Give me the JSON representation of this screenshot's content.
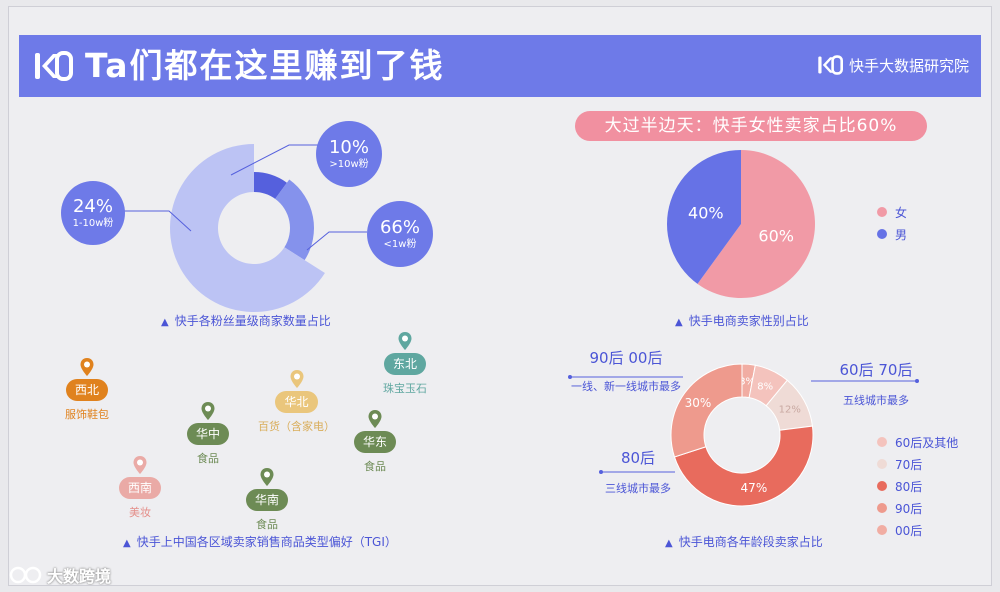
{
  "header": {
    "title": "Ta们都在这里赚到了钱",
    "brand": "快手大数据研究院",
    "color": "#6e7ae8"
  },
  "banner": "大过半边天：快手女性卖家占比60%",
  "chart_data": [
    {
      "type": "pie",
      "title": "快手各粉丝量级商家数量占比",
      "categories": [
        ">10w粉",
        "1-10w粉",
        "<1w粉"
      ],
      "values": [
        10,
        24,
        66
      ],
      "labels": [
        "10%",
        "24%",
        "66%"
      ],
      "colors": [
        "#5560dd",
        "#8592ec",
        "#bcc3f4"
      ]
    },
    {
      "type": "pie",
      "title": "快手电商卖家性别占比",
      "categories": [
        "女",
        "男"
      ],
      "values": [
        60,
        40
      ],
      "labels": [
        "60%",
        "40%"
      ],
      "colors": [
        "#f19aa6",
        "#6672e6"
      ]
    },
    {
      "type": "pie",
      "title": "快手电商各年龄段卖家占比",
      "categories": [
        "60后及其他",
        "70后",
        "80后",
        "90后",
        "00后"
      ],
      "values": [
        8,
        12,
        47,
        30,
        3
      ],
      "labels": [
        "8%",
        "12%",
        "47%",
        "30%",
        "3%"
      ],
      "colors": [
        "#f4c3bd",
        "#efdbd6",
        "#e86b5d",
        "#ee9a8d",
        "#f1ada3"
      ]
    }
  ],
  "fans_chart": {
    "bubbles": [
      {
        "pct": "10%",
        "sub": ">10w粉"
      },
      {
        "pct": "24%",
        "sub": "1-10w粉"
      },
      {
        "pct": "66%",
        "sub": "<1w粉"
      }
    ]
  },
  "gender_legend": [
    "女",
    "男"
  ],
  "age_legend": [
    "60后及其他",
    "70后",
    "80后",
    "90后",
    "00后"
  ],
  "age_annotations": [
    {
      "big": "90后 00后",
      "small": "一线、新一线城市最多"
    },
    {
      "big": "60后 70后",
      "small": "五线城市最多"
    },
    {
      "big": "80后",
      "small": "三线城市最多"
    }
  ],
  "regions": [
    {
      "name": "东北",
      "goods": "珠宝玉石",
      "color": "#5fa7a0"
    },
    {
      "name": "西北",
      "goods": "服饰鞋包",
      "color": "#e0821e"
    },
    {
      "name": "华北",
      "goods": "百货（含家电）",
      "color": "#eac67c"
    },
    {
      "name": "华中",
      "goods": "食品",
      "color": "#6d8b55"
    },
    {
      "name": "华东",
      "goods": "食品",
      "color": "#6d8b55"
    },
    {
      "name": "西南",
      "goods": "美妆",
      "color": "#eaaaa6"
    },
    {
      "name": "华南",
      "goods": "食品",
      "color": "#6d8b55"
    }
  ],
  "captions": {
    "fans": "快手各粉丝量级商家数量占比",
    "gender": "快手电商卖家性别占比",
    "region": "快手上中国各区域卖家销售商品类型偏好（TGI）",
    "age": "快手电商各年龄段卖家占比",
    "triangle": "▲"
  },
  "watermark": "大数跨境"
}
